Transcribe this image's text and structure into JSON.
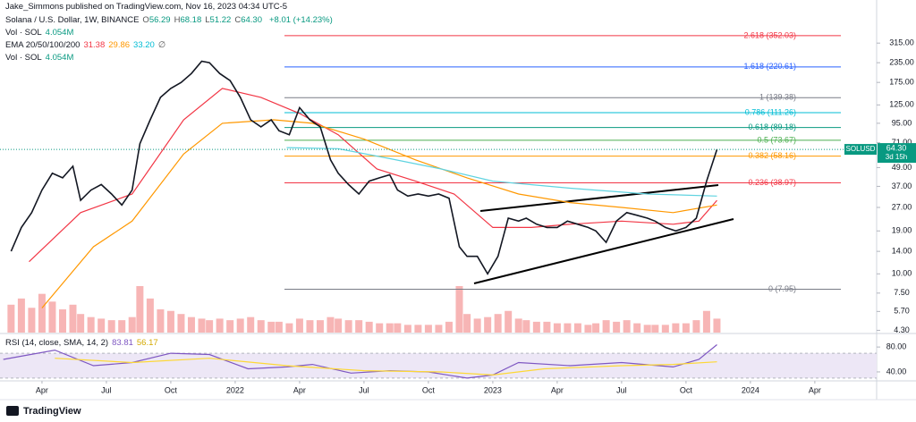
{
  "header": {
    "publisher": "Jake_Simmons published on TradingView.com, Nov 16, 2023 04:34 UTC-5",
    "symbol": "Solana / U.S. Dollar, 1W, BINANCE",
    "ohlc": [
      {
        "label": "O",
        "value": "56.29"
      },
      {
        "label": "H",
        "value": "68.18"
      },
      {
        "label": "L",
        "value": "51.22"
      },
      {
        "label": "C",
        "value": "64.30"
      }
    ],
    "change": "+8.01 (+14.23%)",
    "vol1": {
      "label": "Vol · SOL",
      "value": "4.054M"
    },
    "ema": {
      "label": "EMA 20/50/100/200",
      "values": [
        "31.38",
        "29.86",
        "33.20"
      ],
      "na": "∅"
    },
    "vol2": {
      "label": "Vol · SOL",
      "value": "4.054M"
    },
    "footer": "TradingView"
  },
  "chart_data": [
    {
      "type": "line",
      "name": "SOLUSD",
      "color": "#131722",
      "log_scale": true,
      "ylim": [
        4.1,
        600
      ],
      "yticks": [
        {
          "value": 315,
          "label": "315.00"
        },
        {
          "value": 235,
          "label": "235.00"
        },
        {
          "value": 175,
          "label": "175.00"
        },
        {
          "value": 125,
          "label": "125.00"
        },
        {
          "value": 95,
          "label": "95.00"
        },
        {
          "value": 71,
          "label": "71.00"
        },
        {
          "value": 49,
          "label": "49.00"
        },
        {
          "value": 37,
          "label": "37.00"
        },
        {
          "value": 27,
          "label": "27.00"
        },
        {
          "value": 19,
          "label": "19.00"
        },
        {
          "value": 14,
          "label": "14.00"
        },
        {
          "value": 10,
          "label": "10.00"
        },
        {
          "value": 7.5,
          "label": "7.50"
        },
        {
          "value": 5.7,
          "label": "5.70"
        },
        {
          "value": 4.3,
          "label": "4.30"
        }
      ],
      "xlim": [
        2021.087,
        2024.49
      ],
      "xticks": [
        {
          "value": 2021.25,
          "label": "Apr"
        },
        {
          "value": 2021.5,
          "label": "Jul"
        },
        {
          "value": 2021.75,
          "label": "Oct"
        },
        2022,
        {
          "value": 2022.25,
          "label": "Apr"
        },
        {
          "value": 2022.5,
          "label": "Jul"
        },
        {
          "value": 2022.75,
          "label": "Oct"
        },
        2023,
        {
          "value": 2023.25,
          "label": "Apr"
        },
        {
          "value": 2023.5,
          "label": "Jul"
        },
        {
          "value": 2023.75,
          "label": "Oct"
        },
        2024,
        {
          "value": 2024.25,
          "label": "Apr"
        }
      ],
      "x": [
        2021.13,
        2021.17,
        2021.21,
        2021.25,
        2021.29,
        2021.33,
        2021.37,
        2021.4,
        2021.44,
        2021.48,
        2021.52,
        2021.56,
        2021.6,
        2021.63,
        2021.67,
        2021.71,
        2021.75,
        2021.79,
        2021.83,
        2021.87,
        2021.9,
        2021.94,
        2021.98,
        2022.02,
        2022.06,
        2022.1,
        2022.14,
        2022.17,
        2022.21,
        2022.25,
        2022.29,
        2022.33,
        2022.37,
        2022.4,
        2022.44,
        2022.48,
        2022.52,
        2022.56,
        2022.6,
        2022.63,
        2022.67,
        2022.71,
        2022.75,
        2022.79,
        2022.83,
        2022.87,
        2022.9,
        2022.94,
        2022.98,
        2023.02,
        2023.06,
        2023.1,
        2023.13,
        2023.17,
        2023.21,
        2023.25,
        2023.29,
        2023.33,
        2023.37,
        2023.4,
        2023.44,
        2023.48,
        2023.52,
        2023.56,
        2023.6,
        2023.63,
        2023.67,
        2023.71,
        2023.75,
        2023.79,
        2023.83,
        2023.87
      ],
      "values": [
        14,
        20,
        25,
        35,
        45,
        42,
        50,
        30,
        35,
        38,
        33,
        28,
        35,
        70,
        100,
        140,
        160,
        175,
        200,
        240,
        235,
        200,
        180,
        140,
        100,
        90,
        100,
        85,
        80,
        120,
        100,
        90,
        55,
        45,
        38,
        33,
        40,
        42,
        44,
        35,
        32,
        33,
        32,
        33,
        31,
        15,
        13,
        13,
        10,
        13,
        23,
        22,
        23,
        21,
        20,
        20,
        22,
        21,
        20,
        19,
        16,
        22,
        25,
        24,
        23,
        22,
        20,
        19,
        20,
        23,
        40,
        64.3
      ],
      "volume": [
        18,
        22,
        16,
        25,
        20,
        15,
        18,
        12,
        10,
        9,
        8,
        8,
        10,
        30,
        22,
        15,
        14,
        12,
        10,
        9,
        8,
        9,
        8,
        9,
        10,
        8,
        7,
        7,
        6,
        9,
        8,
        8,
        10,
        9,
        8,
        8,
        7,
        6,
        6,
        6,
        5,
        5,
        5,
        5,
        7,
        30,
        12,
        9,
        10,
        12,
        14,
        9,
        8,
        7,
        7,
        6,
        6,
        6,
        5,
        6,
        8,
        7,
        8,
        6,
        5,
        5,
        5,
        6,
        6,
        8,
        14,
        9
      ],
      "volume_color": "#f5a3a3",
      "last": {
        "symbol": "SOLUSD",
        "price": "64.30",
        "countdown": "3d 15h",
        "color": "#089981"
      },
      "series": [
        {
          "name": "EMA 20",
          "color": "#f23645",
          "x": [
            2021.2,
            2021.4,
            2021.6,
            2021.8,
            2021.95,
            2022.1,
            2022.25,
            2022.4,
            2022.55,
            2022.7,
            2022.85,
            2023.0,
            2023.15,
            2023.3,
            2023.5,
            2023.7,
            2023.8,
            2023.87
          ],
          "values": [
            12,
            25,
            33,
            100,
            160,
            140,
            110,
            80,
            48,
            40,
            33,
            20,
            20,
            21,
            22,
            21,
            22,
            30
          ]
        },
        {
          "name": "EMA 50",
          "color": "#ff9800",
          "x": [
            2021.25,
            2021.45,
            2021.6,
            2021.8,
            2021.95,
            2022.15,
            2022.3,
            2022.5,
            2022.7,
            2022.9,
            2023.1,
            2023.3,
            2023.5,
            2023.7,
            2023.87
          ],
          "values": [
            6,
            15,
            22,
            60,
            95,
            100,
            95,
            75,
            55,
            42,
            33,
            29,
            27,
            25,
            28
          ]
        },
        {
          "name": "EMA 100",
          "color": "#5fd3e0",
          "x": [
            2022.2,
            2022.4,
            2022.6,
            2022.8,
            2023.0,
            2023.3,
            2023.6,
            2023.87
          ],
          "values": [
            66,
            65,
            56,
            48,
            40,
            36,
            33,
            32
          ]
        }
      ],
      "fib_levels": [
        {
          "label": "2.618 (352.03)",
          "value": 352.03,
          "color": "#f23645"
        },
        {
          "label": "1.618 (220.61)",
          "value": 220.61,
          "color": "#2962ff"
        },
        {
          "label": "1 (139.38)",
          "value": 139.38,
          "color": "#787b86"
        },
        {
          "label": "0.786 (111.26)",
          "value": 111.26,
          "color": "#00bcd4"
        },
        {
          "label": "0.618 (89.18)",
          "value": 89.18,
          "color": "#089981"
        },
        {
          "label": "0.5 (73.67)",
          "value": 73.67,
          "color": "#4caf50"
        },
        {
          "label": "0.382 (58.16)",
          "value": 58.16,
          "color": "#ff9800"
        },
        {
          "label": "0.236 (38.97)",
          "value": 38.97,
          "color": "#f23645"
        },
        {
          "label": "0 (7.95)",
          "value": 7.95,
          "color": "#787b86"
        }
      ]
    },
    {
      "type": "line",
      "title": "RSI (14, close, SMA, 14, 2)",
      "ylim": [
        27,
        96
      ],
      "yticks": [
        {
          "value": 80,
          "label": "80.00"
        },
        {
          "value": 40,
          "label": "40.00"
        }
      ],
      "band": [
        30,
        70
      ],
      "band_color": "#ede7f6",
      "series": [
        {
          "name": "RSI",
          "color": "#7e57c2",
          "last": "83.81",
          "x": [
            2021.1,
            2021.3,
            2021.45,
            2021.6,
            2021.75,
            2021.9,
            2022.05,
            2022.2,
            2022.3,
            2022.45,
            2022.6,
            2022.75,
            2022.9,
            2023.0,
            2023.1,
            2023.3,
            2023.5,
            2023.7,
            2023.8,
            2023.87
          ],
          "values": [
            60,
            75,
            50,
            55,
            70,
            68,
            45,
            48,
            52,
            38,
            42,
            40,
            30,
            35,
            55,
            50,
            55,
            48,
            60,
            83.81
          ]
        },
        {
          "name": "RSI MA",
          "color": "#fdd835",
          "last": "56.17",
          "x": [
            2021.3,
            2021.6,
            2021.9,
            2022.2,
            2022.5,
            2022.8,
            2023.0,
            2023.2,
            2023.5,
            2023.7,
            2023.87
          ],
          "values": [
            62,
            55,
            62,
            50,
            42,
            40,
            35,
            45,
            50,
            52,
            56.17
          ]
        }
      ]
    }
  ]
}
